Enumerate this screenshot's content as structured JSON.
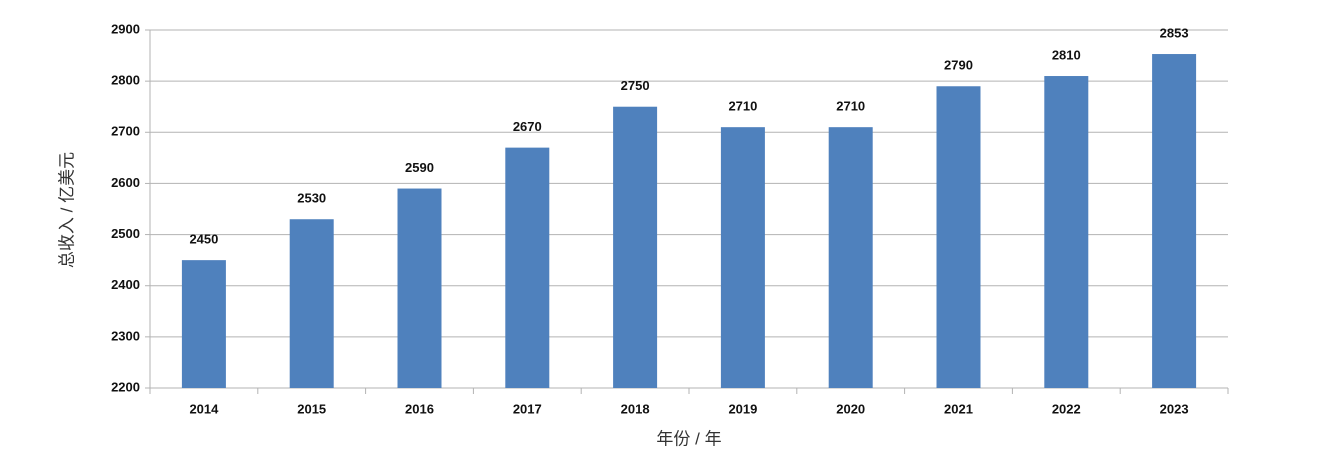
{
  "chart_data": {
    "type": "bar",
    "x_label": "年份 / 年",
    "y_label": "总收入 / 亿美元",
    "categories": [
      "2014",
      "2015",
      "2016",
      "2017",
      "2018",
      "2019",
      "2020",
      "2021",
      "2022",
      "2023"
    ],
    "values": [
      2450,
      2530,
      2590,
      2670,
      2750,
      2710,
      2710,
      2790,
      2810,
      2853
    ],
    "color": "#4f81bd",
    "ylim": [
      2200,
      2900
    ],
    "yticks": [
      2200,
      2300,
      2400,
      2500,
      2600,
      2700,
      2800,
      2900
    ],
    "grid": true
  }
}
